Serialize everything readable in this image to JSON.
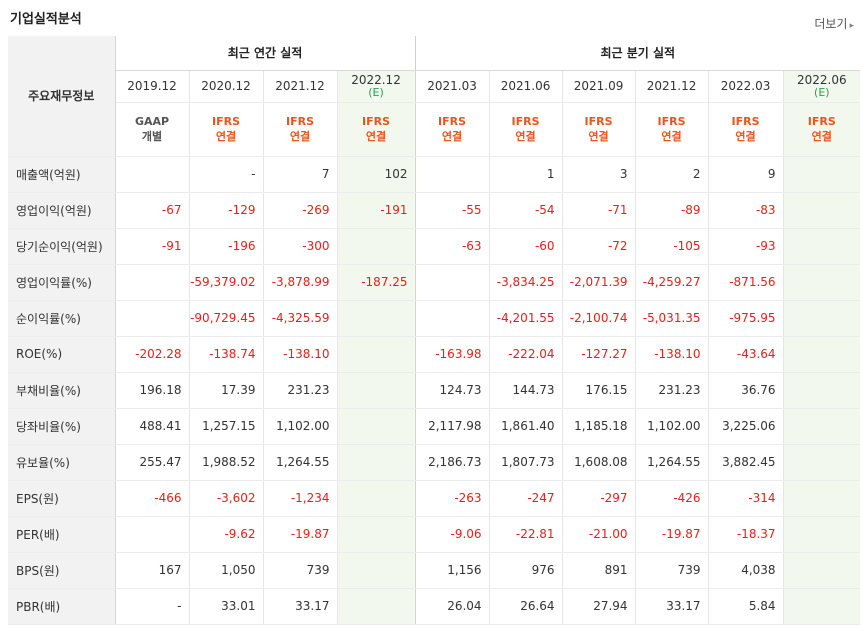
{
  "title": "기업실적분석",
  "more": {
    "label": "더보기",
    "arrow": "▸"
  },
  "header": {
    "row_label": "주요재무정보",
    "annual_group": "최근 연간 실적",
    "quarter_group": "최근 분기 실적",
    "annual": [
      {
        "date": "2019.12",
        "e": "",
        "acc1": "GAAP",
        "acc2": "개별",
        "style": "blk"
      },
      {
        "date": "2020.12",
        "e": "",
        "acc1": "IFRS",
        "acc2": "연결",
        "style": "red"
      },
      {
        "date": "2021.12",
        "e": "",
        "acc1": "IFRS",
        "acc2": "연결",
        "style": "red"
      },
      {
        "date": "2022.12",
        "e": "(E)",
        "acc1": "IFRS",
        "acc2": "연결",
        "style": "red"
      }
    ],
    "quarter": [
      {
        "date": "2021.03",
        "e": "",
        "acc1": "IFRS",
        "acc2": "연결",
        "style": "red"
      },
      {
        "date": "2021.06",
        "e": "",
        "acc1": "IFRS",
        "acc2": "연결",
        "style": "red"
      },
      {
        "date": "2021.09",
        "e": "",
        "acc1": "IFRS",
        "acc2": "연결",
        "style": "red"
      },
      {
        "date": "2021.12",
        "e": "",
        "acc1": "IFRS",
        "acc2": "연결",
        "style": "red"
      },
      {
        "date": "2022.03",
        "e": "",
        "acc1": "IFRS",
        "acc2": "연결",
        "style": "red"
      },
      {
        "date": "2022.06",
        "e": "(E)",
        "acc1": "IFRS",
        "acc2": "연결",
        "style": "red"
      }
    ]
  },
  "rows": [
    {
      "label": "매출액(억원)",
      "values": [
        "",
        "-",
        "7",
        "102",
        "",
        "1",
        "3",
        "2",
        "9",
        ""
      ]
    },
    {
      "label": "영업이익(억원)",
      "values": [
        "-67",
        "-129",
        "-269",
        "-191",
        "-55",
        "-54",
        "-71",
        "-89",
        "-83",
        ""
      ]
    },
    {
      "label": "당기순이익(억원)",
      "values": [
        "-91",
        "-196",
        "-300",
        "",
        "-63",
        "-60",
        "-72",
        "-105",
        "-93",
        ""
      ]
    },
    {
      "label": "영업이익률(%)",
      "values": [
        "",
        "-59,379.02",
        "-3,878.99",
        "-187.25",
        "",
        "-3,834.25",
        "-2,071.39",
        "-4,259.27",
        "-871.56",
        ""
      ]
    },
    {
      "label": "순이익률(%)",
      "values": [
        "",
        "-90,729.45",
        "-4,325.59",
        "",
        "",
        "-4,201.55",
        "-2,100.74",
        "-5,031.35",
        "-975.95",
        ""
      ]
    },
    {
      "label": "ROE(%)",
      "values": [
        "-202.28",
        "-138.74",
        "-138.10",
        "",
        "-163.98",
        "-222.04",
        "-127.27",
        "-138.10",
        "-43.64",
        ""
      ]
    },
    {
      "label": "부채비율(%)",
      "values": [
        "196.18",
        "17.39",
        "231.23",
        "",
        "124.73",
        "144.73",
        "176.15",
        "231.23",
        "36.76",
        ""
      ]
    },
    {
      "label": "당좌비율(%)",
      "values": [
        "488.41",
        "1,257.15",
        "1,102.00",
        "",
        "2,117.98",
        "1,861.40",
        "1,185.18",
        "1,102.00",
        "3,225.06",
        ""
      ]
    },
    {
      "label": "유보율(%)",
      "values": [
        "255.47",
        "1,988.52",
        "1,264.55",
        "",
        "2,186.73",
        "1,807.73",
        "1,608.08",
        "1,264.55",
        "3,882.45",
        ""
      ]
    },
    {
      "label": "EPS(원)",
      "values": [
        "-466",
        "-3,602",
        "-1,234",
        "",
        "-263",
        "-247",
        "-297",
        "-426",
        "-314",
        ""
      ]
    },
    {
      "label": "PER(배)",
      "values": [
        "",
        "-9.62",
        "-19.87",
        "",
        "-9.06",
        "-22.81",
        "-21.00",
        "-19.87",
        "-18.37",
        ""
      ]
    },
    {
      "label": "BPS(원)",
      "values": [
        "167",
        "1,050",
        "739",
        "",
        "1,156",
        "976",
        "891",
        "739",
        "4,038",
        ""
      ]
    },
    {
      "label": "PBR(배)",
      "values": [
        "-",
        "33.01",
        "33.17",
        "",
        "26.04",
        "26.64",
        "27.94",
        "33.17",
        "5.84",
        ""
      ]
    }
  ],
  "colors": {
    "negative": "#e0211f",
    "accent_ifrs": "#e8561e",
    "estimate_green": "#27a24b",
    "estimate_bg": "#f2f8ee",
    "label_bg": "#f2f2f2"
  }
}
